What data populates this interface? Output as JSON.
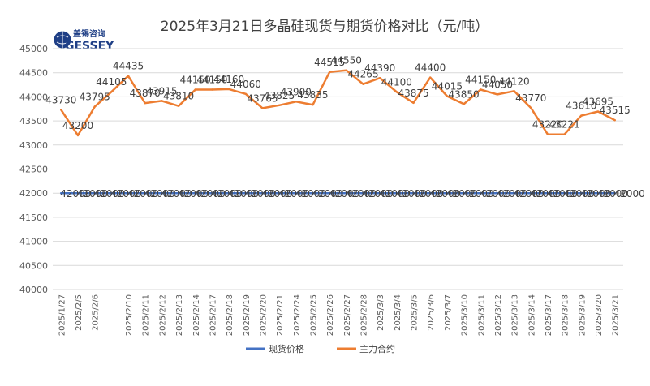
{
  "logo": {
    "top_text": "盖锡咨询",
    "main_text": "GESSEY"
  },
  "chart_data": {
    "type": "line",
    "title": "2025年3月21日多晶硅现货与期货价格对比（元/吨）",
    "xlabel": "",
    "ylabel": "",
    "ylim": [
      40000,
      45000
    ],
    "yticks": [
      40000,
      40500,
      41000,
      41500,
      42000,
      42500,
      43000,
      43500,
      44000,
      44500,
      45000
    ],
    "grid": true,
    "legend": "bottom-center",
    "categories": [
      "2025/1/27",
      "2025/2/5",
      "2025/2/6",
      "2025/2/7",
      "2025/2/10",
      "2025/2/11",
      "2025/2/12",
      "2025/2/13",
      "2025/2/14",
      "2025/2/17",
      "2025/2/18",
      "2025/2/19",
      "2025/2/20",
      "2025/2/21",
      "2025/2/24",
      "2025/2/25",
      "2025/2/26",
      "2025/2/27",
      "2025/2/28",
      "2025/3/3",
      "2025/3/4",
      "2025/3/5",
      "2025/3/6",
      "2025/3/7",
      "2025/3/10",
      "2025/3/11",
      "2025/3/12",
      "2025/3/13",
      "2025/3/14",
      "2025/3/17",
      "2025/3/18",
      "2025/3/19",
      "2025/3/20",
      "2025/3/21"
    ],
    "visible_tick_labels": [
      "2025/1/27",
      "2025/2/5",
      "2025/2/6",
      "2025/2/10",
      "2025/2/11",
      "2025/2/12",
      "2025/2/13",
      "2025/2/14",
      "2025/2/17",
      "2025/2/18",
      "2025/2/19",
      "2025/2/20",
      "2025/2/21",
      "2025/2/24",
      "2025/2/25",
      "2025/2/26",
      "2025/2/27",
      "2025/2/28",
      "2025/3/3",
      "2025/3/4",
      "2025/3/5",
      "2025/3/6",
      "2025/3/7",
      "2025/3/10",
      "2025/3/11",
      "2025/3/12",
      "2025/3/13",
      "2025/3/14",
      "2025/3/17",
      "2025/3/18",
      "2025/3/19",
      "2025/3/20",
      "2025/3/21"
    ],
    "series": [
      {
        "name": "现货价格",
        "color": "#4472c4",
        "values": [
          42000,
          42000,
          42000,
          42000,
          42000,
          42000,
          42000,
          42000,
          42000,
          42000,
          42000,
          42000,
          42000,
          42000,
          42000,
          42000,
          42000,
          42000,
          42000,
          42000,
          42000,
          42000,
          42000,
          42000,
          42000,
          42000,
          42000,
          42000,
          42000,
          42000,
          42000,
          42000,
          42000,
          42000
        ]
      },
      {
        "name": "主力合约",
        "color": "#ed7d31",
        "values": [
          43730,
          43200,
          43795,
          44105,
          44435,
          43870,
          43915,
          43810,
          44150,
          44150,
          44160,
          44060,
          43765,
          43825,
          43900,
          43835,
          44515,
          44550,
          44265,
          44390,
          44100,
          43875,
          44400,
          44015,
          43850,
          44150,
          44050,
          44120,
          43770,
          43220,
          43221,
          43610,
          43695,
          43515
        ]
      }
    ]
  }
}
